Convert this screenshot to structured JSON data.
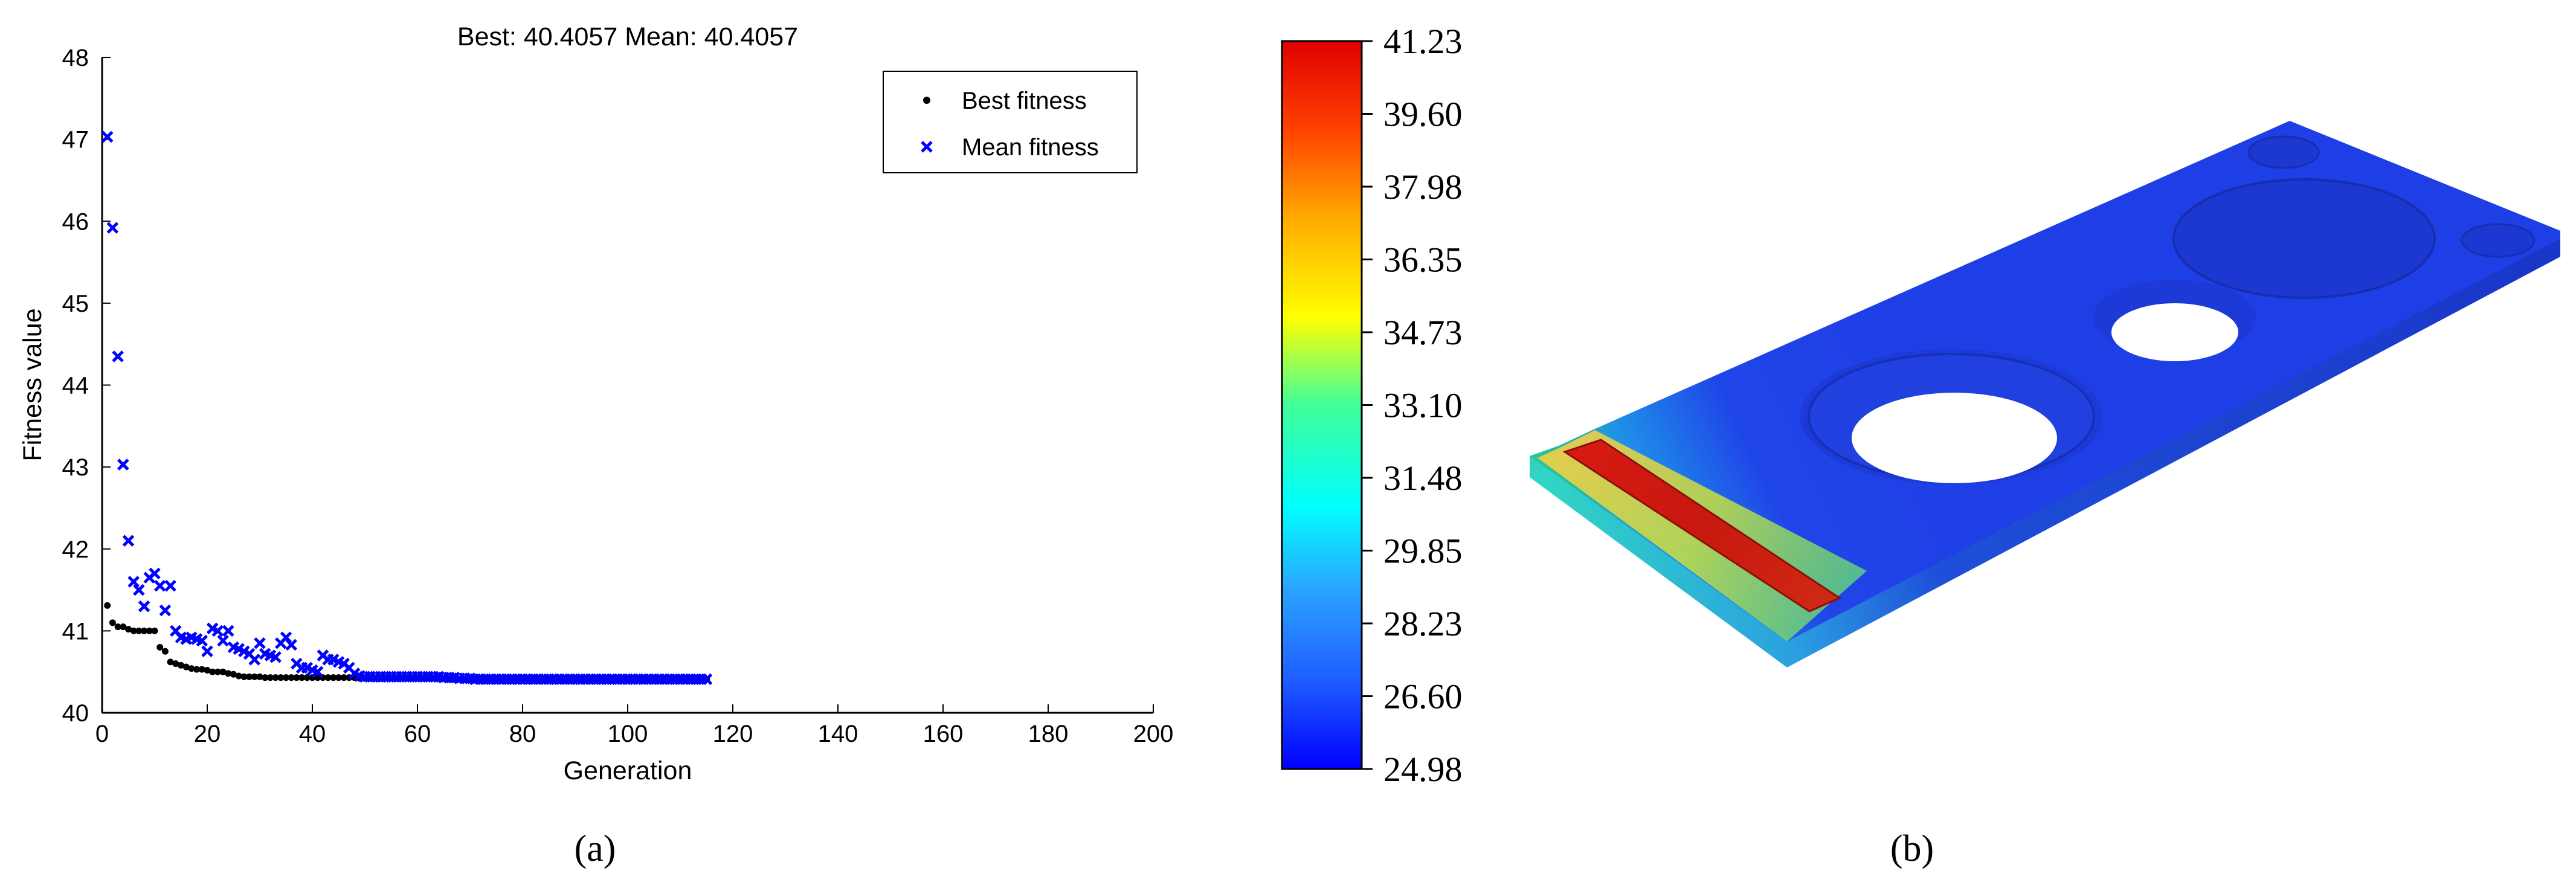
{
  "chart_data": [
    {
      "type": "scatter",
      "title": "Best: 40.4057 Mean: 40.4057",
      "xlabel": "Generation",
      "ylabel": "Fitness value",
      "xlim": [
        0,
        200
      ],
      "ylim": [
        40,
        48
      ],
      "xticks": [
        0,
        20,
        40,
        60,
        80,
        100,
        120,
        140,
        160,
        180,
        200
      ],
      "yticks": [
        40,
        41,
        42,
        43,
        44,
        45,
        46,
        47,
        48
      ],
      "grid": false,
      "legend_position": "top-right",
      "series": [
        {
          "name": "Best fitness",
          "marker": "dot",
          "color": "#000000",
          "x": [
            1,
            2,
            3,
            4,
            5,
            6,
            7,
            8,
            9,
            10,
            11,
            12,
            13,
            14,
            15,
            16,
            17,
            18,
            19,
            20,
            21,
            22,
            23,
            24,
            25,
            26,
            27,
            28,
            29,
            30,
            31,
            32,
            33,
            34,
            35,
            36,
            37,
            38,
            39,
            40,
            41,
            42,
            43,
            44,
            45,
            46,
            47,
            48,
            49,
            50,
            51,
            52,
            53,
            54,
            55,
            56,
            57,
            58,
            59,
            60,
            61,
            62,
            63,
            64,
            65,
            66,
            67,
            68,
            69,
            70,
            71,
            72,
            73,
            74,
            75,
            76,
            77,
            78,
            79,
            80,
            81,
            82,
            83,
            84,
            85,
            86,
            87,
            88,
            89,
            90,
            91,
            92,
            93,
            94,
            95,
            96,
            97,
            98,
            99,
            100,
            101,
            102,
            103,
            104,
            105,
            106,
            107,
            108,
            109,
            110,
            111,
            112,
            113,
            114,
            115
          ],
          "values": [
            41.31,
            41.1,
            41.05,
            41.05,
            41.02,
            41.0,
            41.0,
            41.0,
            41.0,
            41.0,
            40.8,
            40.75,
            40.62,
            40.6,
            40.58,
            40.56,
            40.54,
            40.53,
            40.53,
            40.52,
            40.5,
            40.5,
            40.5,
            40.48,
            40.47,
            40.45,
            40.44,
            40.44,
            40.44,
            40.44,
            40.43,
            40.43,
            40.43,
            40.43,
            40.43,
            40.43,
            40.43,
            40.43,
            40.43,
            40.43,
            40.43,
            40.43,
            40.43,
            40.43,
            40.43,
            40.43,
            40.43,
            40.43,
            40.42,
            40.42,
            40.42,
            40.42,
            40.42,
            40.42,
            40.42,
            40.42,
            40.42,
            40.42,
            40.42,
            40.42,
            40.42,
            40.42,
            40.42,
            40.42,
            40.42,
            40.41,
            40.41,
            40.41,
            40.41,
            40.41,
            40.41,
            40.41,
            40.41,
            40.41,
            40.41,
            40.41,
            40.41,
            40.41,
            40.41,
            40.41,
            40.41,
            40.41,
            40.41,
            40.41,
            40.41,
            40.41,
            40.41,
            40.41,
            40.41,
            40.41,
            40.41,
            40.41,
            40.41,
            40.41,
            40.41,
            40.41,
            40.41,
            40.41,
            40.41,
            40.41,
            40.41,
            40.41,
            40.41,
            40.41,
            40.41,
            40.41,
            40.41,
            40.41,
            40.41,
            40.41,
            40.41,
            40.41,
            40.41,
            40.41,
            40.41
          ]
        },
        {
          "name": "Mean fitness",
          "marker": "x",
          "color": "#0000ff",
          "x": [
            1,
            2,
            3,
            4,
            5,
            6,
            7,
            8,
            9,
            10,
            11,
            12,
            13,
            14,
            15,
            16,
            17,
            18,
            19,
            20,
            21,
            22,
            23,
            24,
            25,
            26,
            27,
            28,
            29,
            30,
            31,
            32,
            33,
            34,
            35,
            36,
            37,
            38,
            39,
            40,
            41,
            42,
            43,
            44,
            45,
            46,
            47,
            48,
            49,
            50,
            51,
            52,
            53,
            54,
            55,
            56,
            57,
            58,
            59,
            60,
            61,
            62,
            63,
            64,
            65,
            66,
            67,
            68,
            69,
            70,
            71,
            72,
            73,
            74,
            75,
            76,
            77,
            78,
            79,
            80,
            81,
            82,
            83,
            84,
            85,
            86,
            87,
            88,
            89,
            90,
            91,
            92,
            93,
            94,
            95,
            96,
            97,
            98,
            99,
            100,
            101,
            102,
            103,
            104,
            105,
            106,
            107,
            108,
            109,
            110,
            111,
            112,
            113,
            114,
            115
          ],
          "values": [
            47.03,
            45.92,
            44.35,
            43.03,
            42.1,
            41.6,
            41.5,
            41.3,
            41.65,
            41.7,
            41.55,
            41.25,
            41.55,
            41.0,
            40.92,
            40.9,
            40.92,
            40.9,
            40.88,
            40.75,
            41.03,
            41.0,
            40.88,
            41.0,
            40.8,
            40.78,
            40.75,
            40.72,
            40.65,
            40.85,
            40.72,
            40.7,
            40.68,
            40.85,
            40.92,
            40.83,
            40.6,
            40.55,
            40.55,
            40.52,
            40.5,
            40.7,
            40.65,
            40.65,
            40.62,
            40.6,
            40.55,
            40.48,
            40.45,
            40.44,
            40.44,
            40.44,
            40.44,
            40.44,
            40.44,
            40.44,
            40.44,
            40.44,
            40.44,
            40.44,
            40.44,
            40.44,
            40.44,
            40.44,
            40.43,
            40.43,
            40.43,
            40.42,
            40.42,
            40.42,
            40.41,
            40.41,
            40.41,
            40.41,
            40.41,
            40.41,
            40.41,
            40.41,
            40.41,
            40.41,
            40.41,
            40.41,
            40.41,
            40.41,
            40.41,
            40.41,
            40.41,
            40.41,
            40.41,
            40.41,
            40.41,
            40.41,
            40.41,
            40.41,
            40.41,
            40.41,
            40.41,
            40.41,
            40.41,
            40.41,
            40.41,
            40.41,
            40.41,
            40.41,
            40.41,
            40.41,
            40.41,
            40.41,
            40.41,
            40.41,
            40.41,
            40.41,
            40.41,
            40.41,
            40.41
          ]
        }
      ]
    },
    {
      "type": "heatmap",
      "colorbar": {
        "labels": [
          "41.23",
          "39.60",
          "37.98",
          "36.35",
          "34.73",
          "33.10",
          "31.48",
          "29.85",
          "28.23",
          "26.60",
          "24.98"
        ],
        "colormap": "jet"
      },
      "hot_region_color": "#e0201a",
      "plate_color": "#1f3fe6"
    }
  ],
  "panels": {
    "a_label": "(a)",
    "b_label": "(b)"
  }
}
